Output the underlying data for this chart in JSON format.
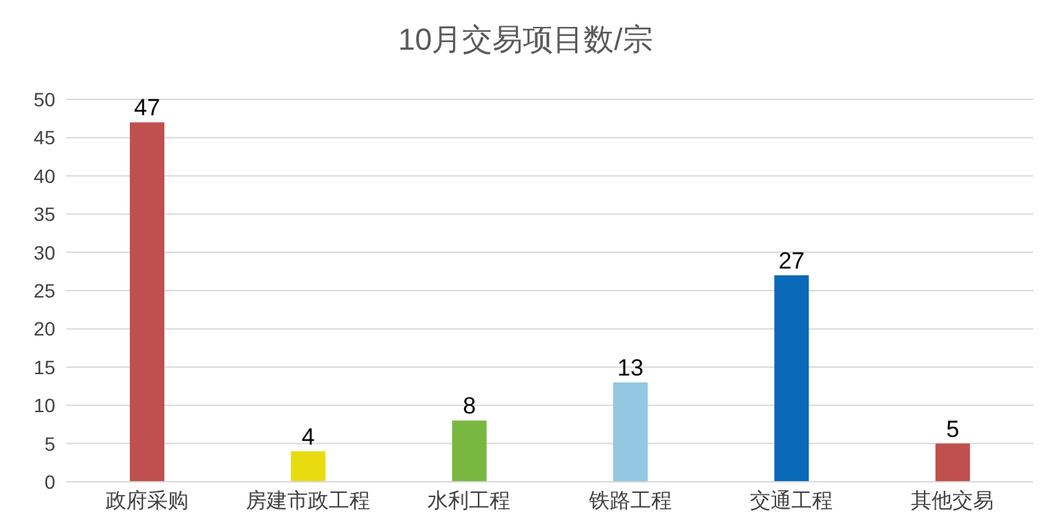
{
  "chart_data": {
    "type": "bar",
    "title": "10月交易项目数/宗",
    "categories": [
      "政府采购",
      "房建市政工程",
      "水利工程",
      "铁路工程",
      "交通工程",
      "其他交易"
    ],
    "values": [
      47,
      4,
      8,
      13,
      27,
      5
    ],
    "colors": [
      "#c0504d",
      "#e8dc10",
      "#78b840",
      "#92c8e2",
      "#0a6ab8",
      "#c0504d"
    ],
    "ylim": [
      0,
      50
    ],
    "yticks": [
      0,
      5,
      10,
      15,
      20,
      25,
      30,
      35,
      40,
      45,
      50
    ],
    "grid": "y",
    "data_labels": true
  }
}
